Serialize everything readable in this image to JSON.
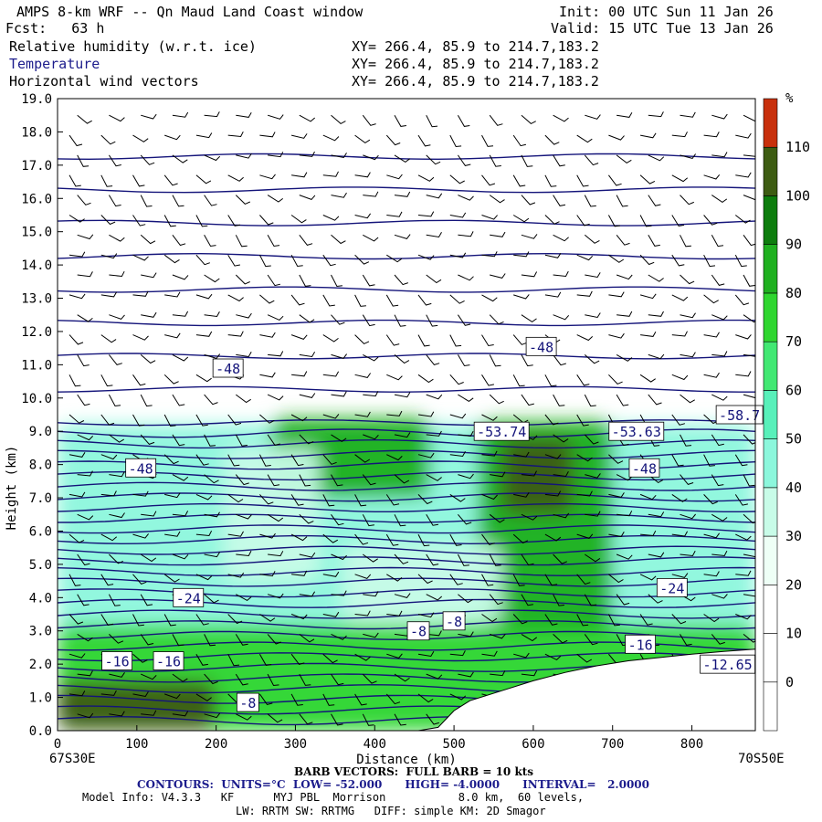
{
  "header": {
    "title": "AMPS 8-km WRF -- Qn Maud Land Coast window",
    "init": "Init: 00 UTC Sun 11 Jan 26",
    "fcst": "Fcst:   63 h",
    "valid": "Valid: 15 UTC Tue 13 Jan 26",
    "fields": [
      {
        "name": "Relative humidity (w.r.t. ice)",
        "xy": "XY= 266.4, 85.9 to 214.7,183.2"
      },
      {
        "name": "Temperature",
        "xy": "XY= 266.4, 85.9 to 214.7,183.2"
      },
      {
        "name": "Horizontal wind vectors",
        "xy": "XY= 266.4, 85.9 to 214.7,183.2"
      }
    ]
  },
  "footer": {
    "left_end": "67S30E",
    "right_end": "70S50E",
    "barb": "BARB VECTORS:  FULL BARB = 10 kts",
    "contours": "CONTOURS:  UNITS=°C  LOW= -52.000      HIGH= -4.0000      INTERVAL=   2.0000",
    "model1": "Model Info: V4.3.3   KF      MYJ PBL  Morrison           8.0 km,  60 levels,",
    "model2": "LW: RRTM SW: RRTMG   DIFF: simple KM: 2D Smagor"
  },
  "colors": {
    "contour": "#14147a",
    "barb": "#000000",
    "terrain": "#ffffff",
    "rh_scale": [
      "#ffffff",
      "#ffffff",
      "#ffffff",
      "#eefff6",
      "#c8fce8",
      "#8cf7dc",
      "#58f0ba",
      "#42e873",
      "#2fd62f",
      "#1fb01f",
      "#0d7d0d",
      "#3d5c12",
      "#c8300c"
    ]
  },
  "chart_data": {
    "type": "heatmap",
    "xlabel": "Distance (km)",
    "ylabel": "Height (km)",
    "xlim": [
      0,
      880
    ],
    "ylim": [
      0,
      19
    ],
    "x_ticks": [
      0,
      100,
      200,
      300,
      400,
      500,
      600,
      700,
      800
    ],
    "y_ticks": [
      "0.0",
      "1.0",
      "2.0",
      "3.0",
      "4.0",
      "5.0",
      "6.0",
      "7.0",
      "8.0",
      "9.0",
      "10.0",
      "11.0",
      "12.0",
      "13.0",
      "14.0",
      "15.0",
      "16.0",
      "17.0",
      "18.0",
      "19.0"
    ],
    "colorbar": {
      "unit": "%",
      "levels": [
        0,
        10,
        20,
        30,
        40,
        50,
        60,
        70,
        80,
        90,
        100,
        110
      ],
      "labels": [
        "0",
        "10",
        "20",
        "30",
        "40",
        "50",
        "60",
        "70",
        "80",
        "90",
        "100",
        "110"
      ]
    },
    "terrain": {
      "x": [
        0,
        440,
        455,
        480,
        500,
        520,
        560,
        600,
        640,
        680,
        720,
        760,
        800,
        840,
        880
      ],
      "z": [
        0,
        0,
        0,
        0.1,
        0.6,
        0.9,
        1.2,
        1.5,
        1.75,
        1.95,
        2.1,
        2.2,
        2.3,
        2.38,
        2.45
      ]
    },
    "temperature_contours": [
      {
        "label": "-48",
        "x": 215,
        "z": 10.9
      },
      {
        "label": "-48",
        "x": 610,
        "z": 11.55
      },
      {
        "label": "-48",
        "x": 105,
        "z": 7.9
      },
      {
        "label": "-48",
        "x": 740,
        "z": 7.9
      },
      {
        "label": "-53.74",
        "x": 560,
        "z": 9.0
      },
      {
        "label": "-53.63",
        "x": 730,
        "z": 9.0
      },
      {
        "label": "-58.7",
        "x": 860,
        "z": 9.5
      },
      {
        "label": "-24",
        "x": 165,
        "z": 4.0
      },
      {
        "label": "-24",
        "x": 775,
        "z": 4.3
      },
      {
        "label": "-16",
        "x": 75,
        "z": 2.1
      },
      {
        "label": "-16",
        "x": 140,
        "z": 2.1
      },
      {
        "label": "-16",
        "x": 735,
        "z": 2.6
      },
      {
        "label": "-8",
        "x": 240,
        "z": 0.85
      },
      {
        "label": "-8",
        "x": 455,
        "z": 3.0
      },
      {
        "label": "-8",
        "x": 500,
        "z": 3.3
      },
      {
        "label": "-12.65",
        "x": 845,
        "z": 2.0
      }
    ],
    "rh_regions": [
      {
        "x": [
          0,
          880
        ],
        "z": [
          0,
          9.2
        ],
        "rh": 45
      },
      {
        "x": [
          0,
          880
        ],
        "z": [
          0,
          3.2
        ],
        "rh": 72
      },
      {
        "x": [
          0,
          200
        ],
        "z": [
          0,
          1.5
        ],
        "rh": 100
      },
      {
        "x": [
          270,
          470
        ],
        "z": [
          7.0,
          9.4
        ],
        "rh": 82
      },
      {
        "x": [
          530,
          700
        ],
        "z": [
          3.0,
          9.3
        ],
        "rh": 88
      },
      {
        "x": [
          560,
          650
        ],
        "z": [
          6.5,
          8.8
        ],
        "rh": 105
      },
      {
        "x": [
          210,
          330
        ],
        "z": [
          4.5,
          8.5
        ],
        "rh": 32
      },
      {
        "x": [
          360,
          560
        ],
        "z": [
          3.2,
          5.6
        ],
        "rh": 32
      }
    ]
  }
}
